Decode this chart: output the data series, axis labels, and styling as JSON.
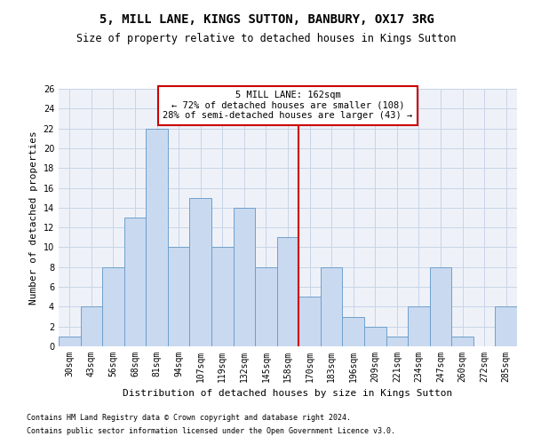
{
  "title": "5, MILL LANE, KINGS SUTTON, BANBURY, OX17 3RG",
  "subtitle": "Size of property relative to detached houses in Kings Sutton",
  "xlabel": "Distribution of detached houses by size in Kings Sutton",
  "ylabel": "Number of detached properties",
  "categories": [
    "30sqm",
    "43sqm",
    "56sqm",
    "68sqm",
    "81sqm",
    "94sqm",
    "107sqm",
    "119sqm",
    "132sqm",
    "145sqm",
    "158sqm",
    "170sqm",
    "183sqm",
    "196sqm",
    "209sqm",
    "221sqm",
    "234sqm",
    "247sqm",
    "260sqm",
    "272sqm",
    "285sqm"
  ],
  "values": [
    1,
    4,
    8,
    13,
    22,
    10,
    15,
    10,
    14,
    8,
    11,
    5,
    8,
    3,
    2,
    1,
    4,
    8,
    1,
    0,
    4
  ],
  "bar_color": "#c9d9f0",
  "bar_edge_color": "#6fa0cb",
  "grid_color": "#c8d4e8",
  "bg_color": "#eef2f8",
  "property_line_color": "#cc0000",
  "annotation_text": "5 MILL LANE: 162sqm\n← 72% of detached houses are smaller (108)\n28% of semi-detached houses are larger (43) →",
  "annotation_box_color": "#ffffff",
  "annotation_border_color": "#cc0000",
  "ylim": [
    0,
    26
  ],
  "yticks": [
    0,
    2,
    4,
    6,
    8,
    10,
    12,
    14,
    16,
    18,
    20,
    22,
    24,
    26
  ],
  "footnote1": "Contains HM Land Registry data © Crown copyright and database right 2024.",
  "footnote2": "Contains public sector information licensed under the Open Government Licence v3.0.",
  "title_fontsize": 10,
  "subtitle_fontsize": 8.5,
  "xlabel_fontsize": 8,
  "ylabel_fontsize": 8,
  "tick_fontsize": 7,
  "annotation_fontsize": 7.5,
  "footnote_fontsize": 6
}
